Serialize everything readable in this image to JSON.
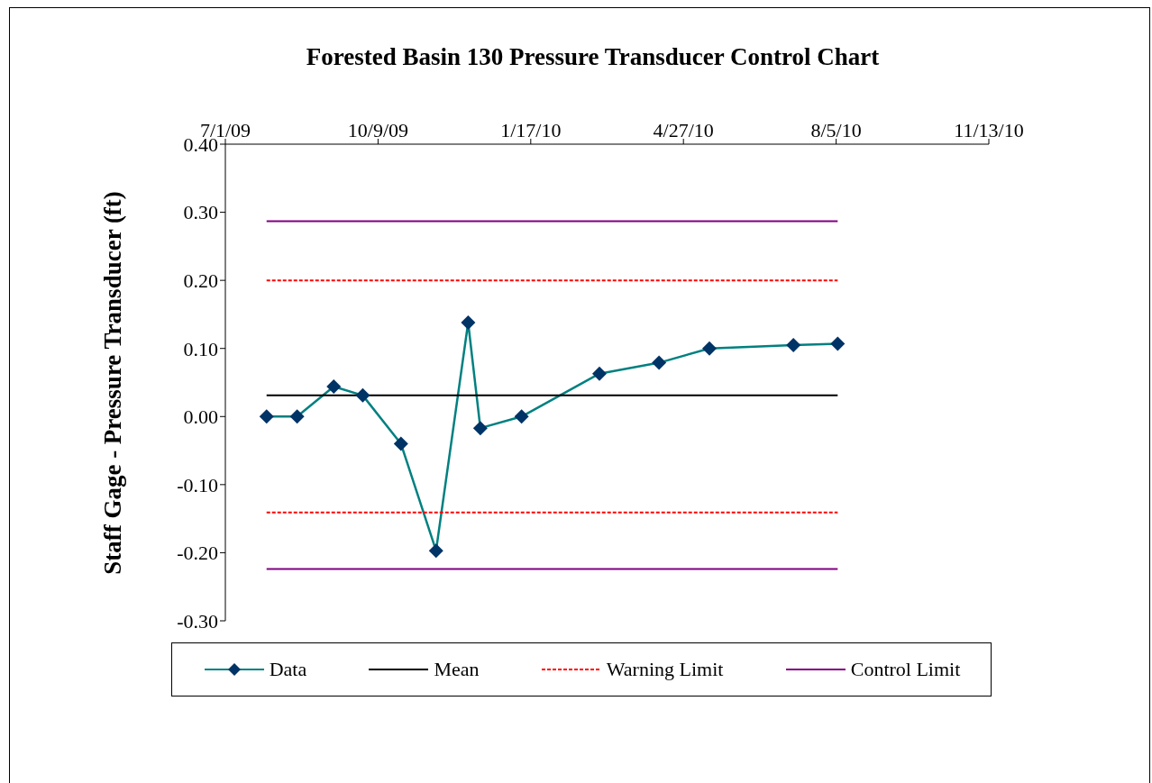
{
  "chart_data": {
    "type": "line",
    "title": "Forested Basin 130 Pressure Transducer Control Chart",
    "ylabel": "Staff Gage - Pressure Transducer (ft)",
    "xlim": [
      "2009-07-01",
      "2010-11-13"
    ],
    "xticks": [
      {
        "value": "2009-07-01",
        "label": "7/1/09"
      },
      {
        "value": "2009-10-09",
        "label": "10/9/09"
      },
      {
        "value": "2010-01-17",
        "label": "1/17/10"
      },
      {
        "value": "2010-04-27",
        "label": "4/27/10"
      },
      {
        "value": "2010-08-05",
        "label": "8/5/10"
      },
      {
        "value": "2010-11-13",
        "label": "11/13/10"
      }
    ],
    "ylim": [
      -0.3,
      0.4
    ],
    "yticks": [
      {
        "value": -0.3,
        "label": "-0.30"
      },
      {
        "value": -0.2,
        "label": "-0.20"
      },
      {
        "value": -0.1,
        "label": "-0.10"
      },
      {
        "value": 0,
        "label": "0.00"
      },
      {
        "value": 0.1,
        "label": "0.10"
      },
      {
        "value": 0.2,
        "label": "0.20"
      },
      {
        "value": 0.3,
        "label": "0.30"
      },
      {
        "value": 0.4,
        "label": "0.40"
      }
    ],
    "grid": false,
    "legend": "bottom",
    "series": [
      {
        "name": "Data",
        "color": "#008080",
        "marker": "diamond",
        "colors": [
          "#003366",
          "#003366",
          "#003366",
          "#003366",
          "#003366",
          "#003366",
          "#003366",
          "#003366",
          "#003366",
          "#003366",
          "#003366",
          "#003366",
          "#003366",
          "#003366"
        ],
        "x": [
          "2009-07-28",
          "2009-08-17",
          "2009-09-10",
          "2009-09-29",
          "2009-10-24",
          "2009-11-16",
          "2009-12-07",
          "2009-12-15",
          "2010-01-11",
          "2010-03-03",
          "2010-04-11",
          "2010-05-14",
          "2010-07-08",
          "2010-08-06"
        ],
        "values": [
          0,
          0,
          0.044,
          0.031,
          -0.04,
          -0.197,
          0.138,
          -0.017,
          0,
          0.063,
          0.079,
          0.1,
          0.105,
          0.107
        ]
      },
      {
        "name": "Mean",
        "color": "#000000",
        "x": [
          "2009-07-28",
          "2010-08-06"
        ],
        "values": [
          0.031,
          0.031
        ]
      },
      {
        "name": "Warning Limit",
        "color": "#ff0000",
        "line_style": "dashed",
        "x": [
          "2009-07-28",
          "2010-08-06"
        ],
        "values": [
          0.2,
          0.2
        ]
      },
      {
        "color": "#ff0000",
        "line_style": "dashed",
        "x": [
          "2009-07-28",
          "2010-08-06"
        ],
        "values": [
          -0.141,
          -0.141
        ]
      },
      {
        "name": "Control Limit",
        "color": "#800080",
        "x": [
          "2009-07-28",
          "2010-08-06"
        ],
        "values": [
          0.287,
          0.287
        ]
      },
      {
        "color": "#800080",
        "x": [
          "2009-07-28",
          "2010-08-06"
        ],
        "values": [
          -0.224,
          -0.224
        ]
      }
    ]
  }
}
